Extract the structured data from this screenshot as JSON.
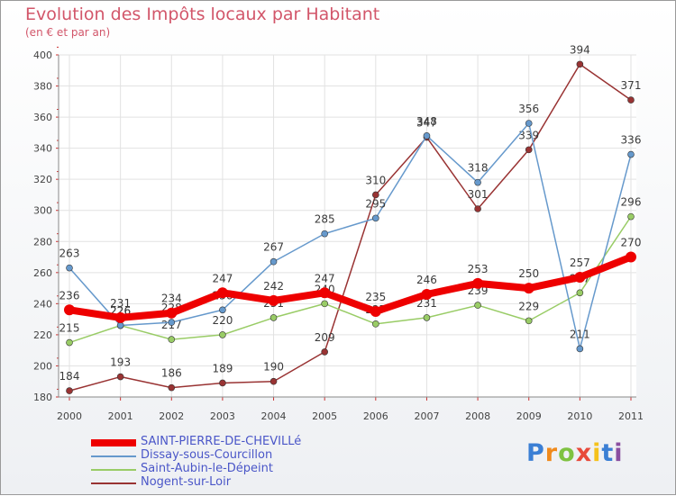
{
  "title": "Evolution des Impôts locaux par Habitant",
  "subtitle": "(en € et par an)",
  "logo": {
    "text": "Proxiti",
    "colors": [
      "#3b7fd4",
      "#f08a1c",
      "#7fc241",
      "#e84a3a",
      "#f5c21b",
      "#3b7fd4",
      "#8a4ea0"
    ]
  },
  "chart_data": {
    "type": "line",
    "title": "Evolution des Impôts locaux par Habitant",
    "subtitle": "(en € et par an)",
    "x": [
      "2000",
      "2001",
      "2002",
      "2003",
      "2004",
      "2005",
      "2006",
      "2007",
      "2008",
      "2009",
      "2010",
      "2011"
    ],
    "ylim": [
      180,
      400
    ],
    "yticks": [
      180,
      200,
      220,
      240,
      260,
      280,
      300,
      320,
      340,
      360,
      380,
      400
    ],
    "grid": true,
    "legend_position": "bottom-left",
    "series": [
      {
        "name": "SAINT-PIERRE-DE-CHEVILLé",
        "color": "#ee0000",
        "values": [
          236,
          231,
          234,
          247,
          242,
          247,
          235,
          246,
          253,
          250,
          257,
          270
        ]
      },
      {
        "name": "Dissay-sous-Courcillon",
        "color": "#6699cc",
        "values": [
          263,
          226,
          228,
          236,
          267,
          285,
          295,
          348,
          318,
          356,
          211,
          336
        ]
      },
      {
        "name": "Saint-Aubin-le-Dépeint",
        "color": "#99cc66",
        "values": [
          215,
          226,
          217,
          220,
          231,
          240,
          227,
          231,
          239,
          229,
          247,
          296
        ]
      },
      {
        "name": "Nogent-sur-Loir",
        "color": "#993333",
        "values": [
          184,
          193,
          186,
          189,
          190,
          209,
          310,
          347,
          301,
          339,
          394,
          371
        ]
      }
    ]
  }
}
